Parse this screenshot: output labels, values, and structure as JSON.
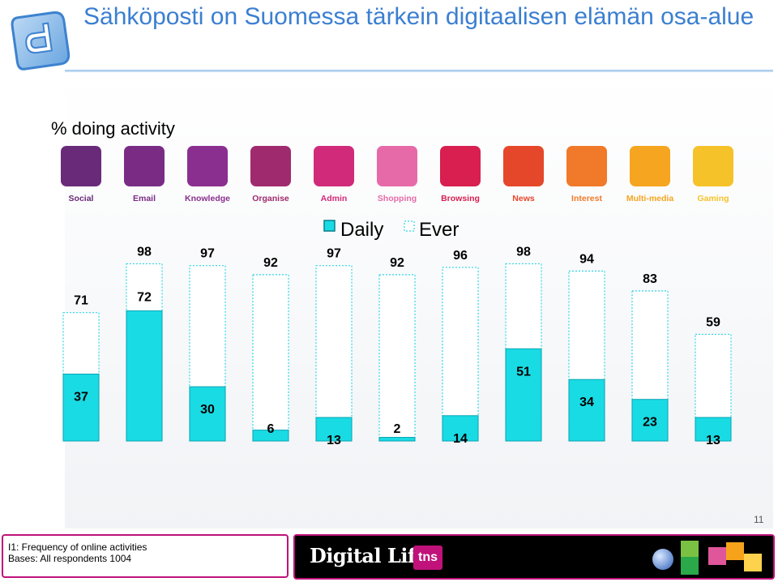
{
  "header": {
    "title": "Sähköposti on Suomessa tärkein digitaalisen elämän osa-alue",
    "subtitle": "% doing activity"
  },
  "colors": {
    "title": "#3b7fd1",
    "daily_bar": "#19dbe4",
    "ever_border": "#2fd6e6",
    "footer_accent": "#c0127a"
  },
  "categories": [
    {
      "label": "Social",
      "icon": "people-icon",
      "color": "#6a2a7a",
      "label_color": "#6a2a7a"
    },
    {
      "label": "Email",
      "icon": "envelope-icon",
      "color": "#7a2c85",
      "label_color": "#7a2c85"
    },
    {
      "label": "Knowledge",
      "icon": "info-icon",
      "color": "#8a2f8f",
      "label_color": "#8a2f8f"
    },
    {
      "label": "Organise",
      "icon": "calendar-icon",
      "color": "#a02a6e",
      "label_color": "#a02a6e"
    },
    {
      "label": "Admin",
      "icon": "document-icon",
      "color": "#d12a7a",
      "label_color": "#d12a7a"
    },
    {
      "label": "Shopping",
      "icon": "cart-icon",
      "color": "#e76aa8",
      "label_color": "#e76aa8"
    },
    {
      "label": "Browsing",
      "icon": "magnifier-icon",
      "color": "#d81f4f",
      "label_color": "#d81f4f"
    },
    {
      "label": "News",
      "icon": "atom-icon",
      "color": "#e5472a",
      "label_color": "#e5472a"
    },
    {
      "label": "Interest",
      "icon": "heart-icon",
      "color": "#f07a2a",
      "label_color": "#f07a2a"
    },
    {
      "label": "Multi-media",
      "icon": "video-camera-icon",
      "color": "#f5a51f",
      "label_color": "#f5a51f"
    },
    {
      "label": "Gaming",
      "icon": "gamepad-icon",
      "color": "#f6c22a",
      "label_color": "#f6c22a"
    }
  ],
  "chart_data": {
    "type": "bar",
    "title": "% doing activity",
    "categories": [
      "Social",
      "Email",
      "Knowledge",
      "Organise",
      "Admin",
      "Shopping",
      "Browsing",
      "News",
      "Interest",
      "Multi-media",
      "Gaming"
    ],
    "series": [
      {
        "name": "Daily",
        "values": [
          37,
          72,
          30,
          6,
          13,
          2,
          14,
          51,
          34,
          23,
          13
        ]
      },
      {
        "name": "Ever",
        "values": [
          71,
          98,
          97,
          92,
          97,
          92,
          96,
          98,
          94,
          83,
          59
        ]
      }
    ],
    "ylim": [
      0,
      100
    ],
    "legend": "top-center",
    "grid": false
  },
  "footer": {
    "page_number": "11",
    "question": "I1: Frequency of online activities",
    "bases": "Bases: All respondents 1004",
    "brand": "Digital Life",
    "partner": "tns"
  }
}
